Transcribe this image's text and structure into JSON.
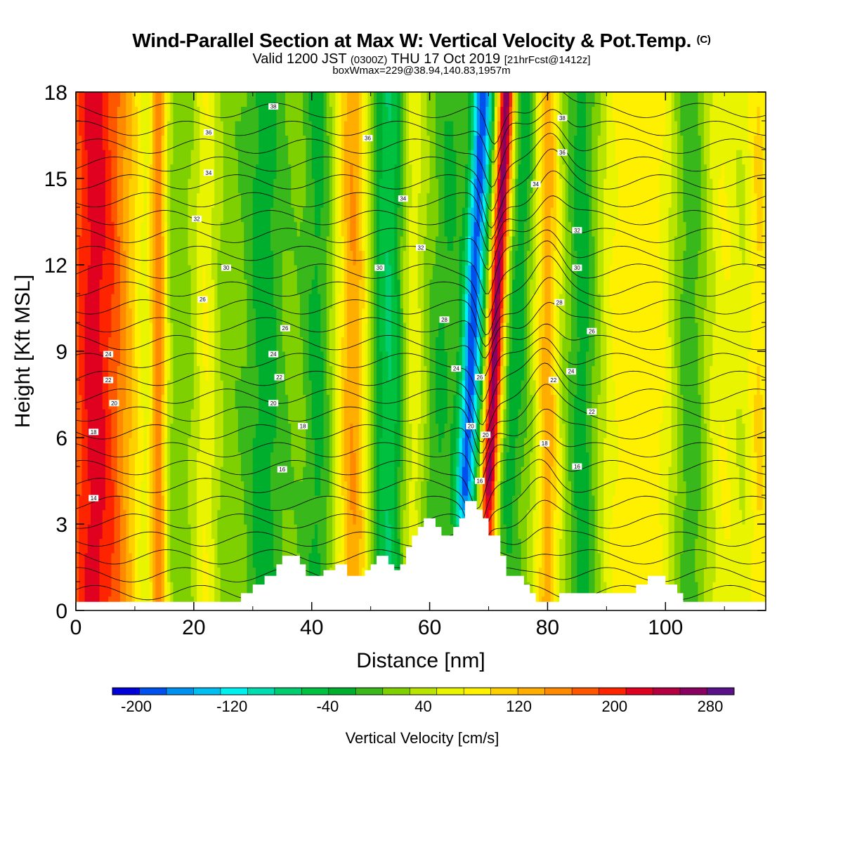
{
  "header": {
    "title": "Wind-Parallel Section at Max W: Vertical Velocity & Pot.Temp.",
    "title_mark": "(C)",
    "valid_prefix": "Valid 1200 JST",
    "valid_utc": "(0300Z)",
    "valid_date": "THU 17 Oct 2019",
    "forecast": "[21hrFcst@1412z]",
    "box_info": "boxWmax=229@38.94,140.83,1957m"
  },
  "chart_data": {
    "type": "heatmap",
    "xlabel": "Distance [nm]",
    "ylabel": "Height [Kft MSL]",
    "xlim": [
      0,
      117
    ],
    "ylim": [
      0,
      18
    ],
    "x_ticks": [
      0,
      20,
      40,
      60,
      80,
      100
    ],
    "y_ticks": [
      0,
      3,
      6,
      9,
      12,
      15,
      18
    ],
    "colorbar": {
      "label": "Vertical Velocity [cm/s]",
      "range": [
        -220,
        300
      ],
      "step": 20,
      "tick_values": [
        -200,
        -120,
        -40,
        40,
        120,
        200,
        280
      ],
      "colors": [
        "#0000d8",
        "#0050ee",
        "#0090f0",
        "#00bff0",
        "#00f0f0",
        "#00dcb0",
        "#00cc70",
        "#00c040",
        "#00ae2e",
        "#38b81a",
        "#7ed000",
        "#b8e400",
        "#e8f400",
        "#fff000",
        "#ffd000",
        "#ffae00",
        "#ff8a00",
        "#ff5600",
        "#ff2400",
        "#e00020",
        "#b40040",
        "#880060",
        "#5a1088"
      ]
    },
    "velocity_bands": [
      {
        "x": 3,
        "w": 180,
        "sd": 4
      },
      {
        "x": 14,
        "w": 120,
        "sd": 1.0
      },
      {
        "x": 9,
        "w": 40,
        "sd": 2.2
      },
      {
        "x": 22,
        "w": 50,
        "sd": 1.5
      },
      {
        "x": 32,
        "w": -40,
        "sd": 2.0
      },
      {
        "x": 41,
        "w": -35,
        "sd": 1.5
      },
      {
        "x": 47,
        "w": 110,
        "sd": 2.0
      },
      {
        "x": 53,
        "w": -70,
        "sd": 2.0
      },
      {
        "x": 57,
        "w": 50,
        "sd": 1.5
      },
      {
        "x": 61,
        "w": -30,
        "sd": 1.5
      },
      {
        "x": 66,
        "w": -180,
        "sd": 1.2
      },
      {
        "x": 70,
        "w": 220,
        "sd": 1.0
      },
      {
        "x": 73.5,
        "w": -40,
        "sd": 1.3
      },
      {
        "x": 80,
        "w": 100,
        "sd": 1.5
      },
      {
        "x": 86,
        "w": -40,
        "sd": 1.5
      },
      {
        "x": 92,
        "w": 50,
        "sd": 2.5
      },
      {
        "x": 98,
        "w": 60,
        "sd": 3.0
      },
      {
        "x": 104,
        "w": -30,
        "sd": 2.0
      },
      {
        "x": 110,
        "w": 50,
        "sd": 2.5
      },
      {
        "x": 116,
        "w": 70,
        "sd": 1.5
      }
    ],
    "terrain": [
      [
        0,
        0.3
      ],
      [
        28,
        0.3
      ],
      [
        28,
        0.6
      ],
      [
        30,
        0.6
      ],
      [
        30,
        0.9
      ],
      [
        32,
        0.9
      ],
      [
        32,
        1.2
      ],
      [
        34,
        1.2
      ],
      [
        34,
        1.6
      ],
      [
        35,
        1.6
      ],
      [
        35,
        1.9
      ],
      [
        38,
        1.9
      ],
      [
        38,
        1.6
      ],
      [
        39,
        1.6
      ],
      [
        39,
        1.2
      ],
      [
        42,
        1.2
      ],
      [
        42,
        1.4
      ],
      [
        44,
        1.4
      ],
      [
        44,
        1.6
      ],
      [
        46,
        1.6
      ],
      [
        46,
        1.2
      ],
      [
        49,
        1.2
      ],
      [
        49,
        1.4
      ],
      [
        50,
        1.4
      ],
      [
        50,
        1.6
      ],
      [
        51,
        1.6
      ],
      [
        51,
        1.9
      ],
      [
        53,
        1.9
      ],
      [
        53,
        1.6
      ],
      [
        54,
        1.6
      ],
      [
        54,
        1.4
      ],
      [
        55,
        1.4
      ],
      [
        55,
        1.6
      ],
      [
        56,
        1.6
      ],
      [
        56,
        2.2
      ],
      [
        57,
        2.2
      ],
      [
        57,
        2.6
      ],
      [
        58,
        2.6
      ],
      [
        58,
        2.9
      ],
      [
        59,
        2.9
      ],
      [
        59,
        3.2
      ],
      [
        61,
        3.2
      ],
      [
        61,
        2.9
      ],
      [
        62,
        2.9
      ],
      [
        62,
        2.6
      ],
      [
        64,
        2.6
      ],
      [
        64,
        2.9
      ],
      [
        65,
        2.9
      ],
      [
        65,
        3.2
      ],
      [
        66,
        3.2
      ],
      [
        66,
        3.8
      ],
      [
        68,
        3.8
      ],
      [
        68,
        3.5
      ],
      [
        69,
        3.5
      ],
      [
        69,
        3.2
      ],
      [
        70,
        3.2
      ],
      [
        70,
        2.6
      ],
      [
        72,
        2.6
      ],
      [
        72,
        1.9
      ],
      [
        73,
        1.9
      ],
      [
        73,
        1.2
      ],
      [
        76,
        1.2
      ],
      [
        76,
        0.9
      ],
      [
        77,
        0.9
      ],
      [
        77,
        0.6
      ],
      [
        78,
        0.6
      ],
      [
        78,
        0.3
      ],
      [
        82,
        0.3
      ],
      [
        82,
        0.6
      ],
      [
        95,
        0.6
      ],
      [
        95,
        0.9
      ],
      [
        97,
        0.9
      ],
      [
        97,
        1.2
      ],
      [
        100,
        1.2
      ],
      [
        100,
        0.9
      ],
      [
        102,
        0.9
      ],
      [
        102,
        0.6
      ],
      [
        103,
        0.6
      ],
      [
        103,
        0.3
      ],
      [
        117,
        0.3
      ]
    ],
    "theta_levels": [
      12,
      13,
      14,
      15,
      16,
      17,
      18,
      19,
      20,
      21,
      22,
      23,
      24,
      25,
      26,
      27,
      28,
      29,
      30,
      31,
      32,
      33,
      34,
      35,
      36,
      37,
      38,
      39,
      40
    ],
    "contour_labels": [
      {
        "x": 3,
        "y": 3.9,
        "v": "14"
      },
      {
        "x": 3,
        "y": 6.2,
        "v": "18"
      },
      {
        "x": 6.5,
        "y": 7.2,
        "v": "20"
      },
      {
        "x": 5.5,
        "y": 8.0,
        "v": "22"
      },
      {
        "x": 5.5,
        "y": 8.9,
        "v": "24"
      },
      {
        "x": 21.5,
        "y": 10.8,
        "v": "26"
      },
      {
        "x": 25.5,
        "y": 11.9,
        "v": "30"
      },
      {
        "x": 20.5,
        "y": 13.6,
        "v": "32"
      },
      {
        "x": 22.5,
        "y": 15.2,
        "v": "34"
      },
      {
        "x": 22.5,
        "y": 16.6,
        "v": "36"
      },
      {
        "x": 33.5,
        "y": 17.5,
        "v": "38"
      },
      {
        "x": 35,
        "y": 4.9,
        "v": "16"
      },
      {
        "x": 38.5,
        "y": 6.4,
        "v": "18"
      },
      {
        "x": 33.5,
        "y": 7.2,
        "v": "20"
      },
      {
        "x": 34.5,
        "y": 8.1,
        "v": "22"
      },
      {
        "x": 33.5,
        "y": 8.9,
        "v": "24"
      },
      {
        "x": 35.5,
        "y": 9.8,
        "v": "26"
      },
      {
        "x": 51.5,
        "y": 11.9,
        "v": "30"
      },
      {
        "x": 49.5,
        "y": 16.4,
        "v": "36"
      },
      {
        "x": 55.5,
        "y": 14.3,
        "v": "34"
      },
      {
        "x": 58.5,
        "y": 12.6,
        "v": "32"
      },
      {
        "x": 62.5,
        "y": 10.1,
        "v": "28"
      },
      {
        "x": 64.5,
        "y": 8.4,
        "v": "24"
      },
      {
        "x": 68.5,
        "y": 8.1,
        "v": "26"
      },
      {
        "x": 67,
        "y": 6.4,
        "v": "20"
      },
      {
        "x": 69.5,
        "y": 6.1,
        "v": "20"
      },
      {
        "x": 68.5,
        "y": 4.5,
        "v": "16"
      },
      {
        "x": 78,
        "y": 14.8,
        "v": "34"
      },
      {
        "x": 82.5,
        "y": 15.9,
        "v": "36"
      },
      {
        "x": 82.5,
        "y": 17.1,
        "v": "38"
      },
      {
        "x": 85,
        "y": 13.2,
        "v": "32"
      },
      {
        "x": 85,
        "y": 11.9,
        "v": "30"
      },
      {
        "x": 82,
        "y": 10.7,
        "v": "28"
      },
      {
        "x": 87.5,
        "y": 9.7,
        "v": "26"
      },
      {
        "x": 84,
        "y": 8.3,
        "v": "24"
      },
      {
        "x": 81,
        "y": 8.0,
        "v": "22"
      },
      {
        "x": 87.5,
        "y": 6.9,
        "v": "22"
      },
      {
        "x": 79.5,
        "y": 5.8,
        "v": "18"
      },
      {
        "x": 85,
        "y": 5.0,
        "v": "16"
      }
    ]
  }
}
